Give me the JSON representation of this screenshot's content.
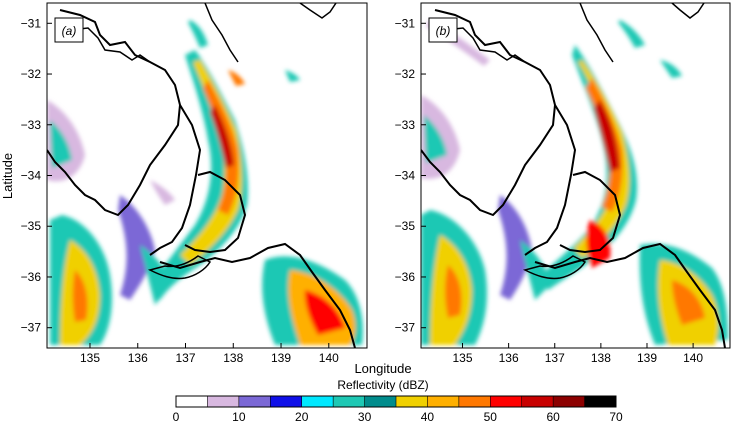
{
  "chart_data": {
    "type": "heatmap",
    "xlabel": "Longitude",
    "ylabel": "Latitude",
    "panels": [
      {
        "label": "(a)",
        "x_ticks": [
          "135",
          "136",
          "137",
          "138",
          "139",
          "140"
        ],
        "y_ticks": [
          "−31",
          "−32",
          "−33",
          "−34",
          "−35",
          "−36",
          "−37"
        ],
        "xlim": [
          134.1,
          140.8
        ],
        "ylim": [
          -37.4,
          -30.6
        ]
      },
      {
        "label": "(b)",
        "x_ticks": [
          "135",
          "136",
          "137",
          "138",
          "139",
          "140"
        ],
        "y_ticks": [
          "−31",
          "−32",
          "−33",
          "−34",
          "−35",
          "−36",
          "−37"
        ],
        "xlim": [
          134.1,
          140.8
        ],
        "ylim": [
          -37.4,
          -30.6
        ]
      }
    ],
    "colorbar": {
      "title": "Reflectivity (dBZ)",
      "min": 0,
      "max": 70,
      "step": 5,
      "tick_labels": [
        "0",
        "10",
        "20",
        "30",
        "40",
        "50",
        "60",
        "70"
      ],
      "colors": [
        "#ffffff",
        "#d8b8e0",
        "#7b68d6",
        "#1010e8",
        "#00e8ff",
        "#1ec8b4",
        "#008c8c",
        "#f0d000",
        "#ffb000",
        "#ff7800",
        "#ff0000",
        "#c80000",
        "#8c0000",
        "#000000"
      ]
    }
  }
}
